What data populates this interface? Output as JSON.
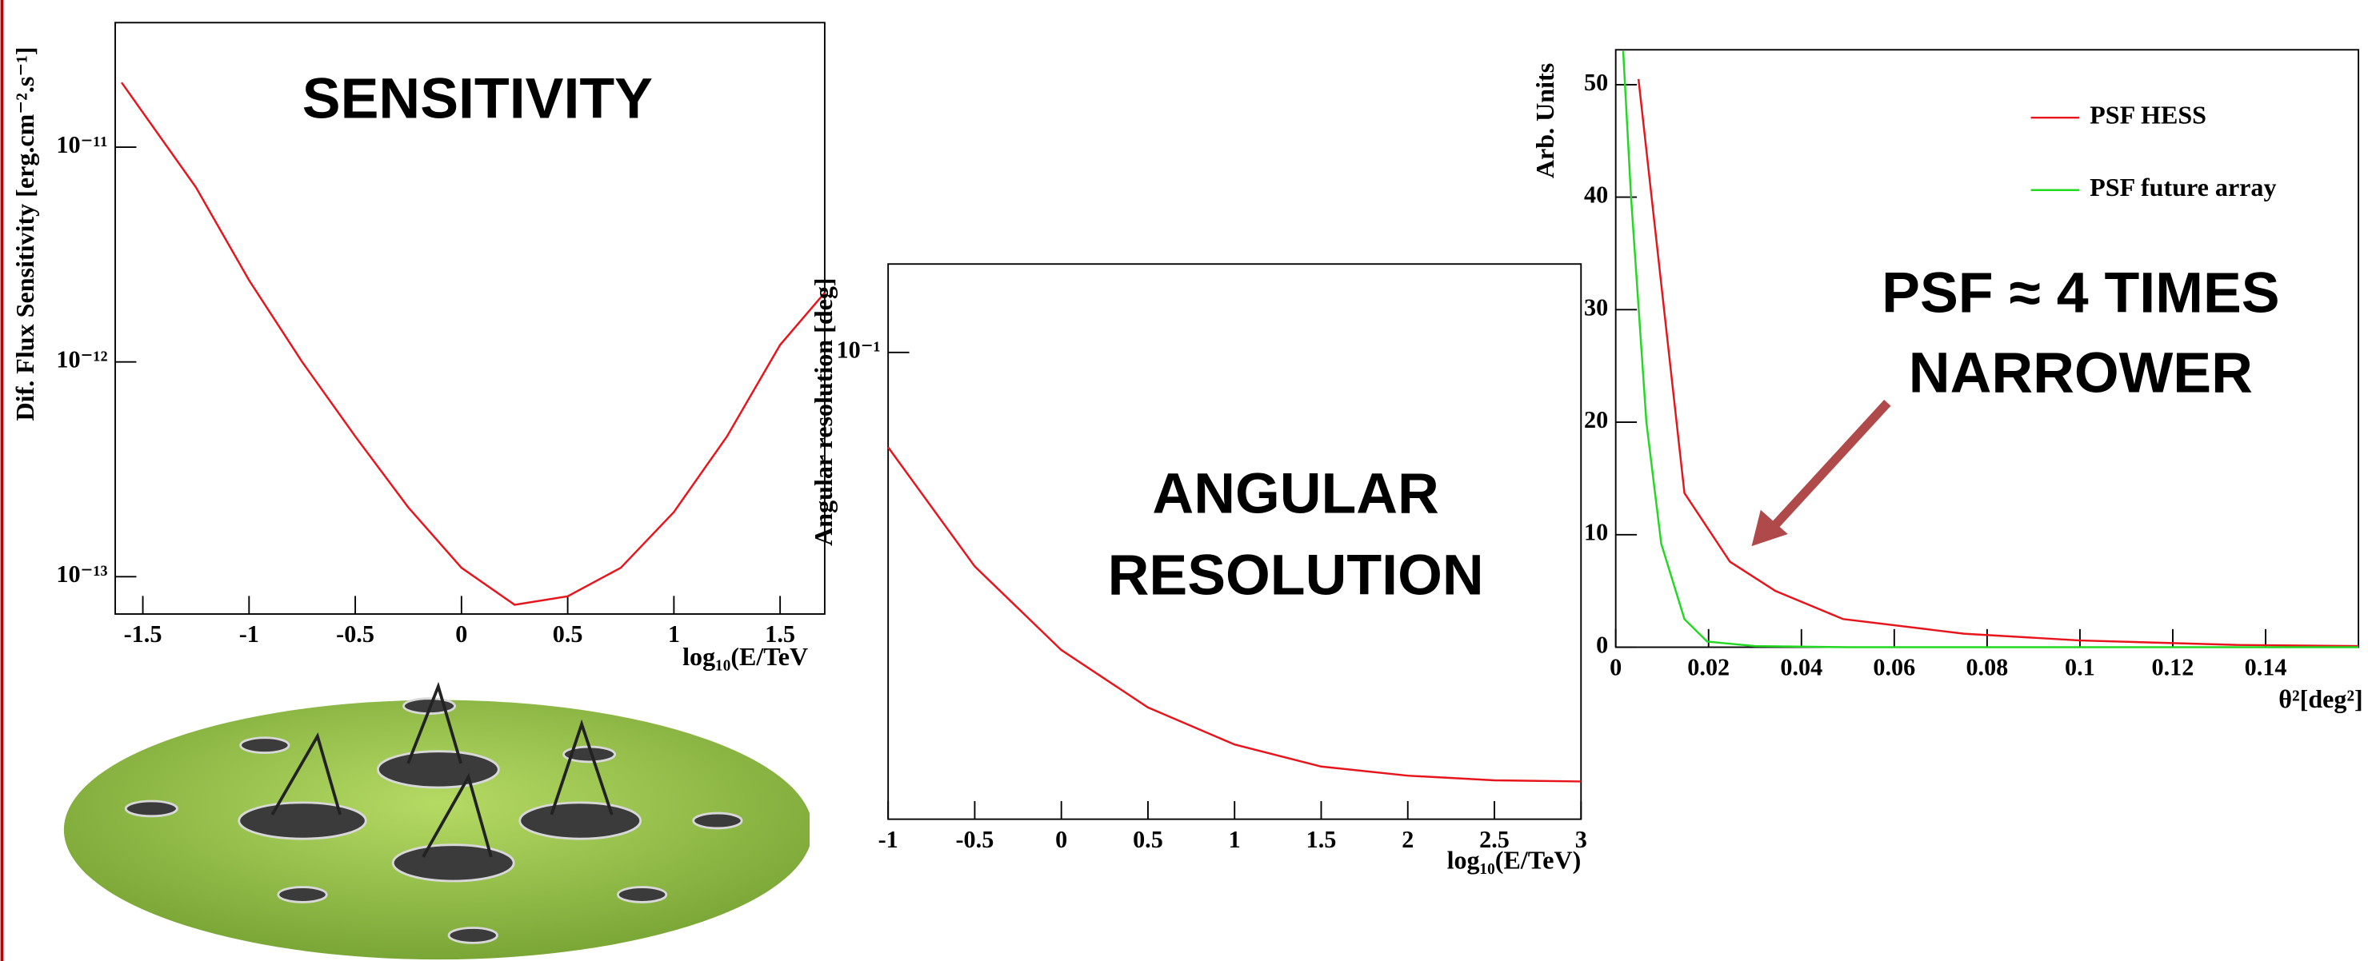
{
  "chart_data": [
    {
      "type": "line",
      "title": "SENSITIVITY",
      "y_label": "Dif. Flux Sensitivity [erg.cm⁻².s⁻¹]",
      "x_label": "log₁₀(E/TeV",
      "x": [
        -1.6,
        -1.25,
        -1.0,
        -0.75,
        -0.5,
        -0.25,
        0,
        0.25,
        0.5,
        0.75,
        1.0,
        1.25,
        1.5,
        1.71
      ],
      "values": [
        2e-11,
        6.5e-12,
        2.4e-12,
        1e-12,
        4.5e-13,
        2.1e-13,
        1.1e-13,
        7.4e-14,
        8.1e-14,
        1.1e-13,
        2e-13,
        4.5e-13,
        1.2e-12,
        2.1e-12
      ],
      "color": "#e8141b",
      "log_y": true,
      "xlim": [
        -1.63,
        1.71
      ],
      "xticks": [
        -1.5,
        -1,
        -0.5,
        0,
        0.5,
        1,
        1.5
      ],
      "ylim": [
        6.7e-14,
        3.8e-11
      ],
      "yticks": [
        {
          "value": 1e-13,
          "label": "10⁻¹³"
        },
        {
          "value": 1e-12,
          "label": "10⁻¹²"
        },
        {
          "value": 1e-11,
          "label": "10⁻¹¹"
        }
      ]
    },
    {
      "type": "line",
      "annotation": [
        "ANGULAR",
        "RESOLUTION"
      ],
      "y_label": "Angular resolution [deg]",
      "x_label": "log₁₀(E/TeV)",
      "x": [
        -1,
        -0.5,
        0,
        0.5,
        1,
        1.5,
        2,
        2.5,
        3
      ],
      "values": [
        0.0808,
        0.0618,
        0.0512,
        0.045,
        0.0414,
        0.0394,
        0.0386,
        0.0382,
        0.0381
      ],
      "color": "#e8141b",
      "log_y": true,
      "xlim": [
        -1,
        3
      ],
      "xticks": [
        -1,
        -0.5,
        0,
        0.5,
        1,
        1.5,
        2,
        2.5,
        3
      ],
      "ylim": [
        0.035,
        0.122
      ],
      "yticks": [
        {
          "value": 0.1,
          "label": "10⁻¹"
        }
      ]
    },
    {
      "type": "line",
      "annotation": [
        "PSF ≈ 4 TIMES",
        "NARROWER"
      ],
      "y_label": "Arb. Units",
      "x_label": "θ²[deg²]",
      "legend": "upper right",
      "series": [
        {
          "name": "PSF HESS",
          "color": "#e8141b",
          "x": [
            0.0049,
            0.0148,
            0.0246,
            0.0344,
            0.049,
            0.075,
            0.1,
            0.134,
            0.16
          ],
          "values": [
            50.5,
            13.7,
            7.6,
            5.0,
            2.5,
            1.2,
            0.6,
            0.2,
            0.1
          ]
        },
        {
          "name": "PSF future array",
          "color": "#22d822",
          "x": [
            0.0016,
            0.0033,
            0.0066,
            0.0098,
            0.0148,
            0.0197,
            0.03,
            0.05,
            0.16
          ],
          "values": [
            53,
            40,
            20,
            9.2,
            2.5,
            0.5,
            0.1,
            0,
            0
          ]
        }
      ],
      "xlim": [
        0,
        0.16
      ],
      "xticks": [
        0,
        0.02,
        0.04,
        0.06,
        0.08,
        0.1,
        0.12,
        0.14
      ],
      "ylim": [
        0,
        53.1
      ],
      "yticks": [
        0,
        10,
        20,
        30,
        40,
        50
      ]
    }
  ]
}
